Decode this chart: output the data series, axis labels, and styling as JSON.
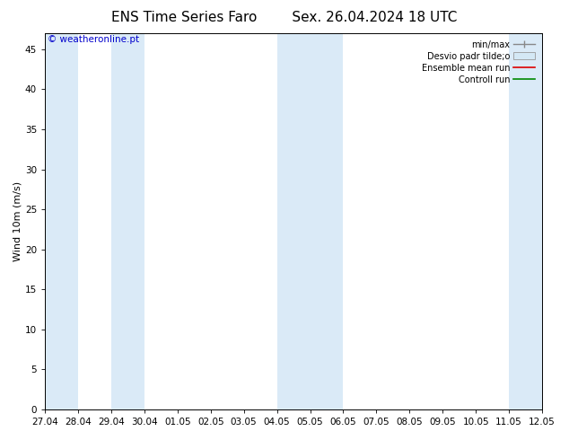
{
  "title_left": "ENS Time Series Faro",
  "title_right": "Sex. 26.04.2024 18 UTC",
  "ylabel": "Wind 10m (m/s)",
  "ylim": [
    0,
    47
  ],
  "yticks": [
    0,
    5,
    10,
    15,
    20,
    25,
    30,
    35,
    40,
    45
  ],
  "x_start": 0,
  "x_end": 15,
  "xtick_labels": [
    "27.04",
    "28.04",
    "29.04",
    "30.04",
    "01.05",
    "02.05",
    "03.05",
    "04.05",
    "05.05",
    "06.05",
    "07.05",
    "08.05",
    "09.05",
    "10.05",
    "11.05",
    "12.05"
  ],
  "xtick_positions": [
    0,
    1,
    2,
    3,
    4,
    5,
    6,
    7,
    8,
    9,
    10,
    11,
    12,
    13,
    14,
    15
  ],
  "shaded_bands": [
    [
      0.0,
      1.0
    ],
    [
      2.0,
      3.0
    ],
    [
      7.0,
      9.0
    ],
    [
      14.0,
      15.0
    ]
  ],
  "band_color": "#daeaf7",
  "background_color": "#ffffff",
  "plot_bg_color": "#ffffff",
  "watermark": "© weatheronline.pt",
  "watermark_color": "#0000cc",
  "title_fontsize": 11,
  "axis_fontsize": 8,
  "tick_fontsize": 7.5,
  "legend_fontsize": 7,
  "ylabel_fontsize": 8
}
